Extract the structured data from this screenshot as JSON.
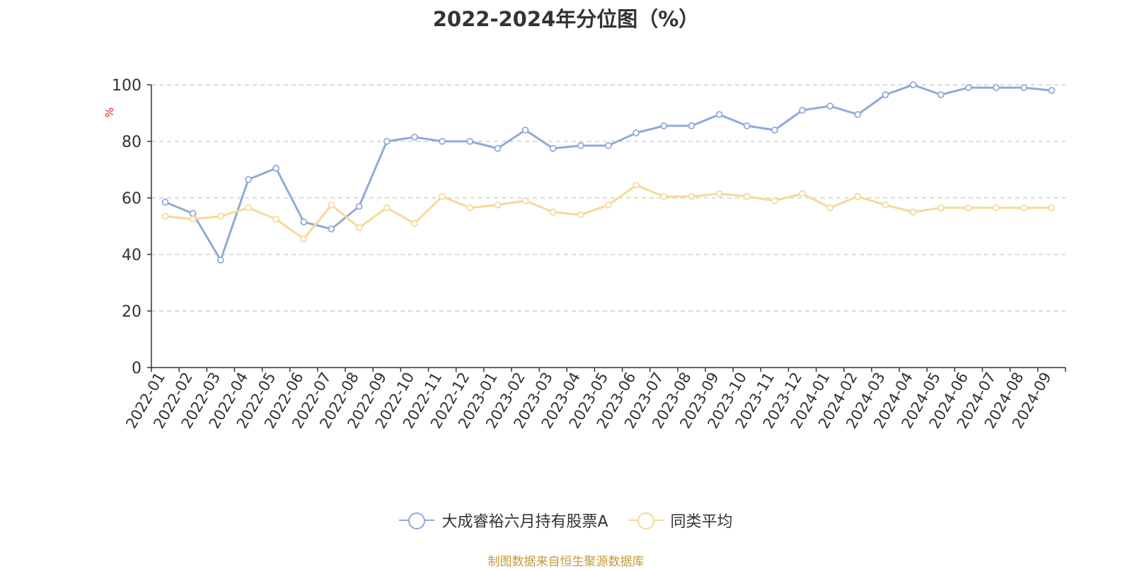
{
  "chart_data": {
    "type": "line",
    "title": "2022-2024年分位图（%）",
    "ylabel": "%",
    "xlabel": "",
    "ylim": [
      0,
      100
    ],
    "yticks": [
      0,
      20,
      40,
      60,
      80,
      100
    ],
    "grid": true,
    "legend_position": "bottom-center",
    "categories": [
      "2022-01",
      "2022-02",
      "2022-03",
      "2022-04",
      "2022-05",
      "2022-06",
      "2022-07",
      "2022-08",
      "2022-09",
      "2022-10",
      "2022-11",
      "2022-12",
      "2023-01",
      "2023-02",
      "2023-03",
      "2023-04",
      "2023-05",
      "2023-06",
      "2023-07",
      "2023-08",
      "2023-09",
      "2023-10",
      "2023-11",
      "2023-12",
      "2024-01",
      "2024-02",
      "2024-03",
      "2024-04",
      "2024-05",
      "2024-06",
      "2024-07",
      "2024-08",
      "2024-09"
    ],
    "series": [
      {
        "name": "大成睿裕六月持有股票A",
        "color": "#8eabd8",
        "values": [
          58.5,
          54.5,
          38.0,
          66.5,
          70.5,
          51.5,
          49.0,
          57.0,
          80.0,
          81.5,
          80.0,
          80.0,
          77.5,
          84.0,
          77.5,
          78.5,
          78.5,
          83.0,
          85.5,
          85.5,
          89.5,
          85.5,
          84.0,
          91.0,
          92.5,
          89.5,
          96.5,
          100.0,
          96.5,
          99.0,
          99.0,
          99.0,
          98.0
        ]
      },
      {
        "name": "同类平均",
        "color": "#f8d898",
        "values": [
          53.5,
          52.5,
          53.5,
          56.5,
          52.5,
          45.5,
          57.5,
          49.5,
          56.5,
          51.0,
          60.5,
          56.5,
          57.5,
          59.0,
          55.0,
          54.0,
          57.5,
          64.5,
          60.5,
          60.5,
          61.5,
          60.5,
          59.0,
          61.5,
          56.5,
          60.5,
          57.5,
          55.0,
          56.5,
          56.5,
          56.5,
          56.5,
          56.5
        ]
      }
    ]
  },
  "source_note": "制图数据来自恒生聚源数据库"
}
